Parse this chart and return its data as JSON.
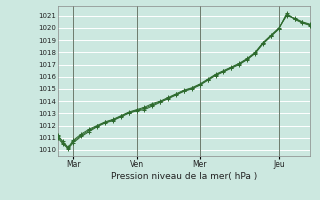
{
  "title": "",
  "xlabel": "Pression niveau de la mer( hPa )",
  "bg_color": "#cce8e0",
  "grid_color": "#ffffff",
  "line_color": "#2d6a2d",
  "ylim": [
    1009.5,
    1021.8
  ],
  "yticks": [
    1010,
    1011,
    1012,
    1013,
    1014,
    1015,
    1016,
    1017,
    1018,
    1019,
    1020,
    1021
  ],
  "xtick_labels": [
    "Mar",
    "Ven",
    "Mer",
    "Jeu"
  ],
  "xtick_positions": [
    12,
    60,
    108,
    168
  ],
  "total_points": 192,
  "line1_x": [
    0,
    4,
    8,
    12,
    18,
    24,
    30,
    36,
    42,
    48,
    54,
    60,
    66,
    72,
    78,
    84,
    90,
    96,
    102,
    108,
    114,
    120,
    126,
    132,
    138,
    144,
    150,
    156,
    162,
    168,
    174,
    180,
    186,
    192
  ],
  "line1_y": [
    1011.2,
    1010.7,
    1010.2,
    1010.8,
    1011.3,
    1011.7,
    1012.0,
    1012.3,
    1012.5,
    1012.8,
    1013.1,
    1013.3,
    1013.5,
    1013.8,
    1014.0,
    1014.3,
    1014.6,
    1014.9,
    1015.1,
    1015.4,
    1015.8,
    1016.2,
    1016.5,
    1016.8,
    1017.1,
    1017.5,
    1018.0,
    1018.8,
    1019.4,
    1020.0,
    1021.0,
    1020.8,
    1020.5,
    1020.3
  ],
  "line2_x": [
    0,
    4,
    8,
    12,
    18,
    24,
    30,
    36,
    42,
    48,
    54,
    60,
    66,
    72,
    78,
    84,
    90,
    96,
    102,
    108,
    114,
    120,
    126,
    132,
    138,
    144,
    150,
    156,
    162,
    168,
    174,
    180,
    186,
    192
  ],
  "line2_y": [
    1011.0,
    1010.5,
    1010.1,
    1010.6,
    1011.1,
    1011.5,
    1011.9,
    1012.2,
    1012.4,
    1012.7,
    1013.0,
    1013.2,
    1013.3,
    1013.6,
    1013.9,
    1014.2,
    1014.5,
    1014.8,
    1015.0,
    1015.3,
    1015.7,
    1016.1,
    1016.4,
    1016.7,
    1017.0,
    1017.4,
    1017.9,
    1018.7,
    1019.3,
    1019.9,
    1021.2,
    1020.7,
    1020.4,
    1020.2
  ],
  "line3_x": [
    0,
    4,
    8,
    12,
    18,
    24,
    30,
    36,
    42,
    48,
    54,
    60,
    66,
    72,
    78,
    84,
    90,
    96,
    102,
    108,
    114,
    120,
    126,
    132,
    138,
    144,
    150,
    156,
    162,
    168,
    174,
    180,
    186,
    192
  ],
  "line3_y": [
    1011.1,
    1010.6,
    1010.15,
    1010.7,
    1011.2,
    1011.6,
    1011.95,
    1012.25,
    1012.45,
    1012.75,
    1013.05,
    1013.25,
    1013.4,
    1013.7,
    1013.95,
    1014.25,
    1014.55,
    1014.85,
    1015.05,
    1015.35,
    1015.75,
    1016.15,
    1016.45,
    1016.75,
    1017.05,
    1017.45,
    1017.95,
    1018.75,
    1019.35,
    1019.95,
    1021.1,
    1020.75,
    1020.45,
    1020.25
  ]
}
